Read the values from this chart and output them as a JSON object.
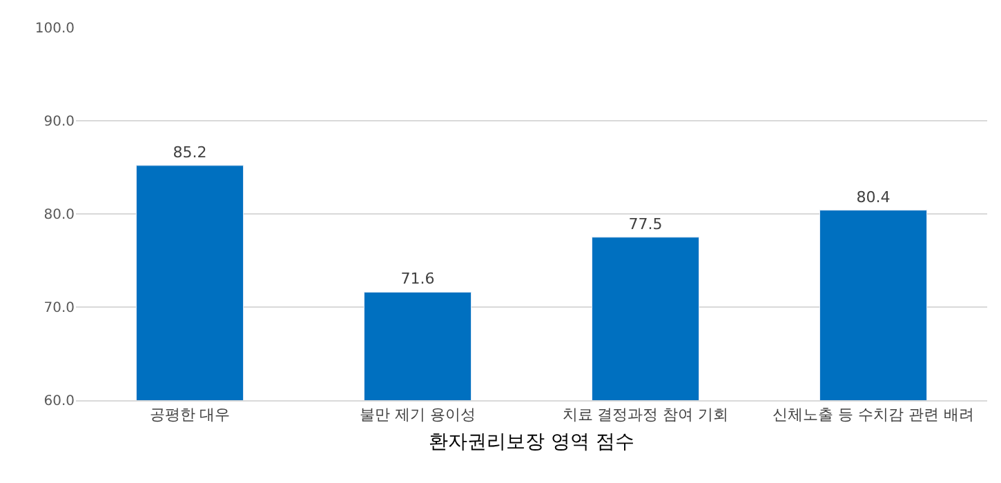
{
  "chart_data": {
    "type": "bar",
    "xlabel": "환자권리보장 영역 점수",
    "categories": [
      "공평한 대우",
      "불만 제기 용이성",
      "치료 결정과정 참여 기회",
      "신체노출 등 수치감 관련 배려"
    ],
    "values": [
      85.2,
      71.6,
      77.5,
      80.4
    ],
    "color": "#0070c0",
    "ylim": [
      60,
      100
    ],
    "yticks": [
      {
        "value": 60,
        "label": "60.0"
      },
      {
        "value": 70,
        "label": "70.0"
      },
      {
        "value": 80,
        "label": "80.0"
      },
      {
        "value": 90,
        "label": "90.0"
      },
      {
        "value": 100,
        "label": "100.0"
      }
    ],
    "grid": "y",
    "data_labels": true
  }
}
